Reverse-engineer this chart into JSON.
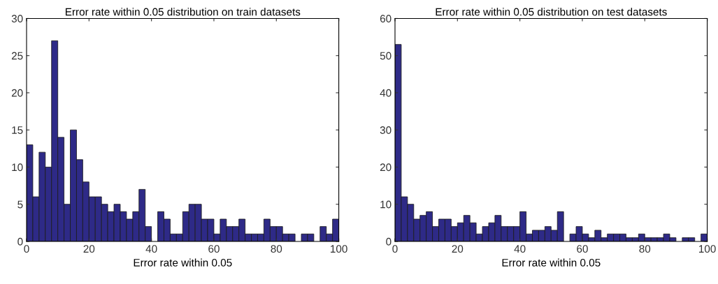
{
  "chart_data": [
    {
      "type": "histogram",
      "title": "Error rate within 0.05 distribution on train datasets",
      "xlabel": "Error rate within 0.05",
      "color": "#2e2a87",
      "bins": [
        0,
        2,
        4,
        6,
        8,
        10,
        12,
        14,
        16,
        18,
        20,
        22,
        24,
        26,
        28,
        30,
        32,
        34,
        36,
        38,
        40,
        42,
        44,
        46,
        48,
        50,
        52,
        54,
        56,
        58,
        60,
        62,
        64,
        66,
        68,
        70,
        72,
        74,
        76,
        78,
        80,
        82,
        84,
        86,
        88,
        90,
        92,
        94,
        96,
        98,
        100
      ],
      "values": [
        13,
        6,
        12,
        10,
        27,
        14,
        5,
        15,
        11,
        8,
        6,
        6,
        5,
        4,
        5,
        4,
        3,
        4,
        7,
        2,
        0,
        4,
        3,
        1,
        1,
        4,
        5,
        5,
        3,
        3,
        1,
        3,
        2,
        2,
        3,
        1,
        1,
        1,
        3,
        2,
        2,
        1,
        1,
        0,
        1,
        1,
        0,
        2,
        1,
        3
      ],
      "xlim": [
        0,
        100
      ],
      "xticks": [
        0,
        20,
        40,
        60,
        80,
        100
      ],
      "ylim": [
        0,
        30
      ],
      "yticks": [
        0,
        5,
        10,
        15,
        20,
        25,
        30
      ],
      "grid": false
    },
    {
      "type": "histogram",
      "title": "Error rate within 0.05 distribution on test datasets",
      "xlabel": "Error rate within 0.05",
      "color": "#2e2a87",
      "bins": [
        0,
        2,
        4,
        6,
        8,
        10,
        12,
        14,
        16,
        18,
        20,
        22,
        24,
        26,
        28,
        30,
        32,
        34,
        36,
        38,
        40,
        42,
        44,
        46,
        48,
        50,
        52,
        54,
        56,
        58,
        60,
        62,
        64,
        66,
        68,
        70,
        72,
        74,
        76,
        78,
        80,
        82,
        84,
        86,
        88,
        90,
        92,
        94,
        96,
        98,
        100
      ],
      "values": [
        53,
        12,
        10,
        6,
        7,
        8,
        4,
        6,
        6,
        4,
        5,
        7,
        5,
        2,
        4,
        5,
        7,
        4,
        4,
        4,
        8,
        2,
        3,
        3,
        4,
        3,
        8,
        0,
        2,
        4,
        2,
        1,
        3,
        1,
        2,
        2,
        2,
        1,
        1,
        2,
        1,
        1,
        1,
        2,
        1,
        0,
        1,
        1,
        0,
        2
      ],
      "xlim": [
        0,
        100
      ],
      "xticks": [
        0,
        20,
        40,
        60,
        80,
        100
      ],
      "ylim": [
        0,
        60
      ],
      "yticks": [
        0,
        10,
        20,
        30,
        40,
        50,
        60
      ],
      "grid": false
    }
  ]
}
